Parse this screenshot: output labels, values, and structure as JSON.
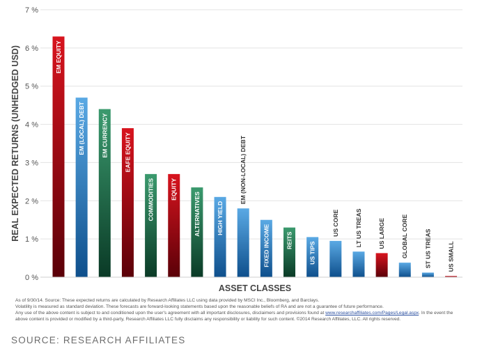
{
  "chart_data": {
    "type": "bar",
    "ylabel": "REAL EXPECTED RETURNS (UNHEDGED USD)",
    "xlabel": "ASSET CLASSES",
    "ylim": [
      0,
      7
    ],
    "yticks": [
      "0 %",
      "1 %",
      "2 %",
      "3 %",
      "4 %",
      "5 %",
      "6 %",
      "7 %"
    ],
    "grid": true,
    "categories": [
      "EM EQUITY",
      "EM (LOCAL) DEBT",
      "EM CURRENCY",
      "EAFE EQUITY",
      "COMMODITIES",
      "EQUITY",
      "ALTERNATIVES",
      "HIGH YIELD",
      "EM (NON-LOCAL) DEBT",
      "FIXED INCOME",
      "REITS",
      "US TIPS",
      "US CORE",
      "LT US TREAS",
      "US LARGE",
      "GLOBAL CORE",
      "ST US TREAS",
      "US SMALL"
    ],
    "values": [
      6.3,
      4.7,
      4.4,
      3.9,
      2.7,
      2.7,
      2.35,
      2.1,
      1.8,
      1.5,
      1.3,
      1.05,
      0.95,
      0.67,
      0.63,
      0.38,
      0.12,
      0.03
    ],
    "groups": [
      "equity",
      "credit",
      "alternative",
      "equity",
      "alternative",
      "equity",
      "alternative",
      "credit",
      "credit",
      "credit",
      "alternative",
      "credit",
      "credit",
      "credit",
      "equity",
      "credit",
      "credit",
      "equity"
    ],
    "colors": {
      "equity": [
        "#d8141e",
        "#5a0008"
      ],
      "credit": [
        "#5aa9e4",
        "#0e4f8c"
      ],
      "alternative": [
        "#3b9a6e",
        "#0a3a26"
      ]
    }
  },
  "footnote": {
    "line1": "As of 9/30/14. Source: These expected returns are calculated by Research Affiliates LLC using data provided by MSCI Inc., Bloomberg, and Barclays.",
    "line2": "Volatility is measured as standard deviation. These forecasts are forward-looking statements based upon the reasonable beliefs of RA and are not a guarantee of future performance.",
    "line3_pre": "Any use of the above content is subject to and conditioned upon the user's agreement with all important disclosures, disclaimers and provisions found at ",
    "line3_link": "www.researchaffiliates.com/Pages/Legal.aspx",
    "line3_post": ". In the event the",
    "line4": "above content is provided or modified by a third-party, Research Affiliates LLC fully disclaims any responsibility or liability for such content.  ©2014 Research Affiliates, LLC.  All rights reserved."
  },
  "source": "SOURCE: RESEARCH AFFILIATES"
}
